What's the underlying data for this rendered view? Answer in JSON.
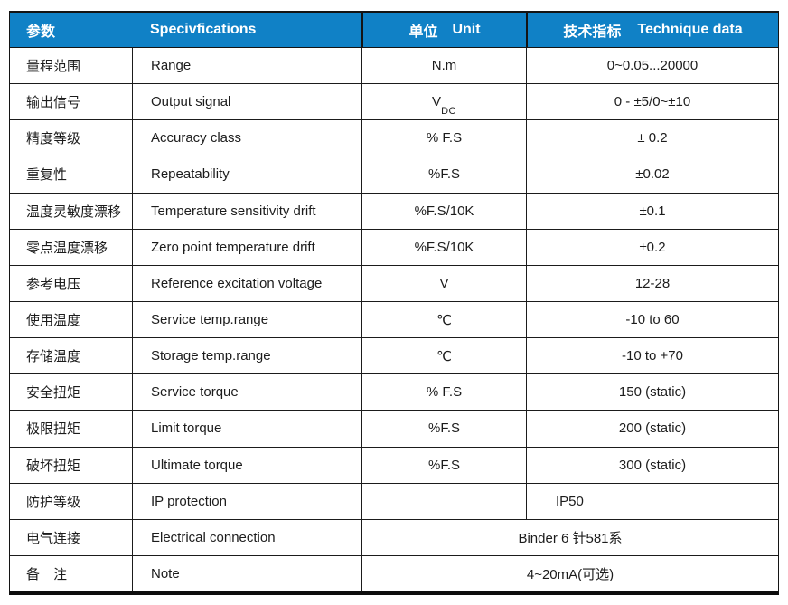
{
  "table": {
    "colors": {
      "header_bg": "#1081c6",
      "header_text": "#ffffff",
      "body_text": "#1c1c1c",
      "border": "#141414"
    },
    "header": {
      "col1_cn": "参数",
      "col2_en": "Specivfications",
      "col3_cn": "单位",
      "col3_en": "Unit",
      "col4_cn": "技术指标",
      "col4_en": "Technique data"
    },
    "rows": [
      {
        "cn": "量程范围",
        "en": "Range",
        "unit": "N.m",
        "value": "0~0.05...20000"
      },
      {
        "cn": "输出信号",
        "en": "Output signal",
        "unit": "V",
        "unit_sub": "DC",
        "value": "0 - ±5/0~±10"
      },
      {
        "cn": "精度等级",
        "en": "Accuracy class",
        "unit": "% F.S",
        "value": "± 0.2"
      },
      {
        "cn": "重复性",
        "en": "Repeatability",
        "unit": "%F.S",
        "value": "±0.02"
      },
      {
        "cn": "温度灵敏度漂移",
        "en": "Temperature sensitivity drift",
        "unit": "%F.S/10K",
        "value": "±0.1"
      },
      {
        "cn": "零点温度漂移",
        "en": "Zero point temperature drift",
        "unit": "%F.S/10K",
        "value": "±0.2"
      },
      {
        "cn": "参考电压",
        "en": "Reference excitation voltage",
        "unit": "V",
        "value": "12-28"
      },
      {
        "cn": "使用温度",
        "en": "Service temp.range",
        "unit": "℃",
        "value": "-10 to 60"
      },
      {
        "cn": "存储温度",
        "en": "Storage temp.range",
        "unit": "℃",
        "value": "-10 to +70"
      },
      {
        "cn": "安全扭矩",
        "en": "Service torque",
        "unit": "% F.S",
        "value": "150 (static)"
      },
      {
        "cn": "极限扭矩",
        "en": "Limit torque",
        "unit": "%F.S",
        "value": "200 (static)"
      },
      {
        "cn": "破坏扭矩",
        "en": "Ultimate torque",
        "unit": "%F.S",
        "value": "300 (static)"
      },
      {
        "cn": "防护等级",
        "en": "IP protection",
        "unit": "",
        "value": "IP50",
        "value_align": "left"
      },
      {
        "cn": "电气连接",
        "en": "Electrical connection",
        "merged": true,
        "value": "Binder 6 针581系"
      },
      {
        "cn": "备　注",
        "en": "Note",
        "merged": true,
        "value": "4~20mA(可选)"
      }
    ]
  }
}
